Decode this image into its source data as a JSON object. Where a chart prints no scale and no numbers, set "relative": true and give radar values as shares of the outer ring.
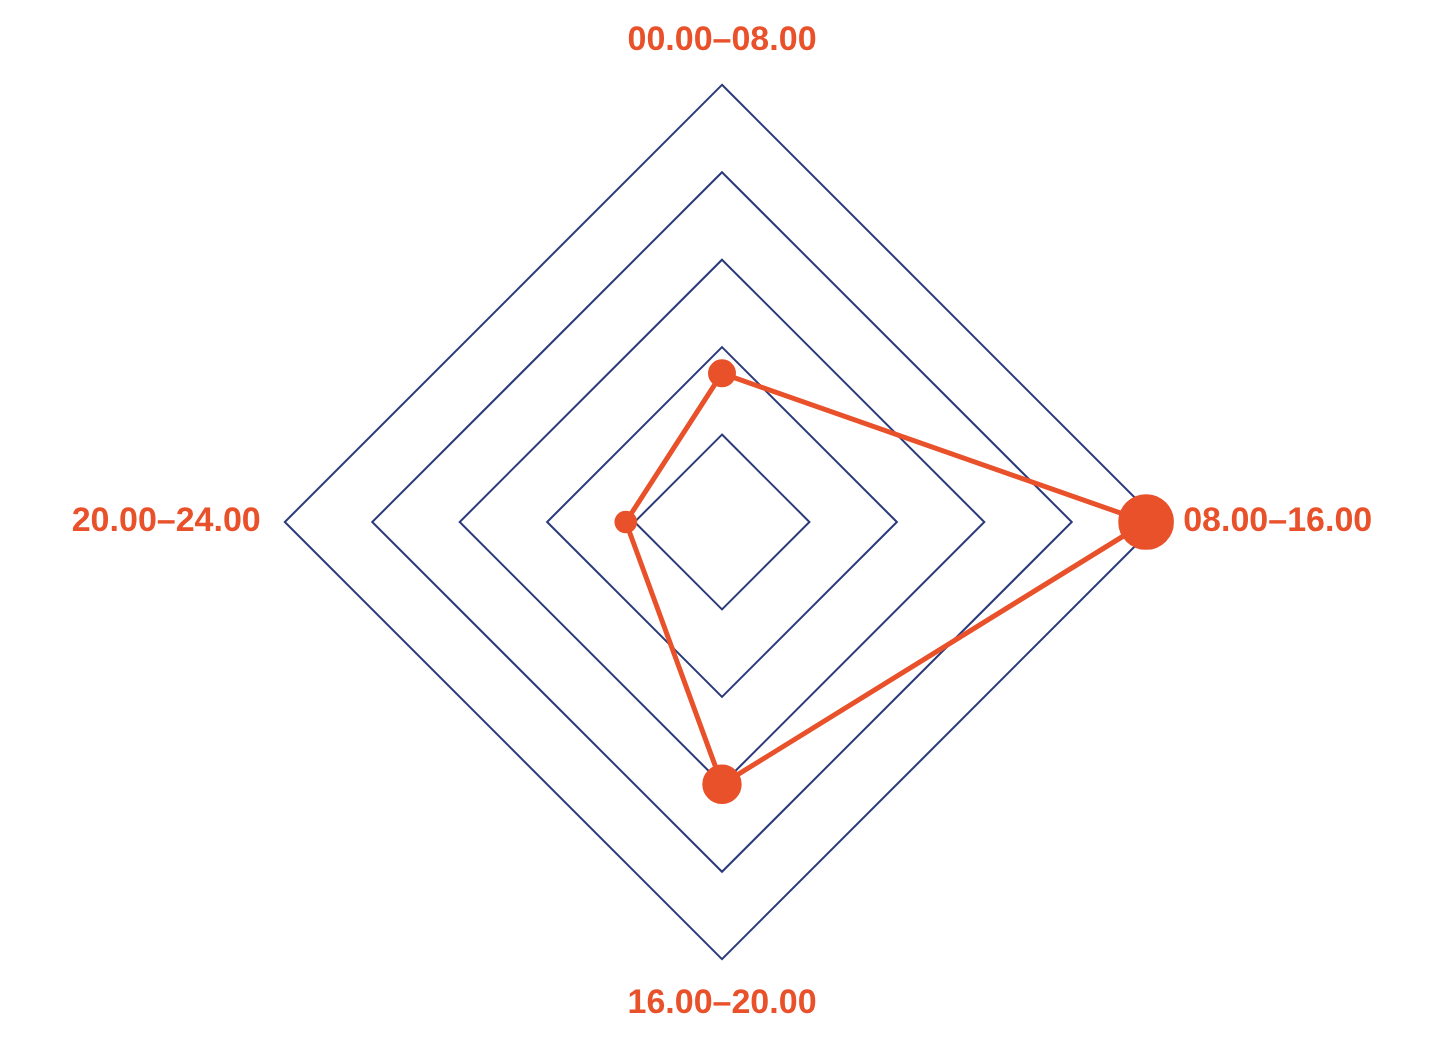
{
  "chart_data": {
    "type": "radar",
    "relative": true,
    "categories": [
      "00.00–08.00",
      "08.00–16.00",
      "16.00–20.00",
      "20.00–24.00"
    ],
    "series": [
      {
        "color": "#e8512a",
        "values": [
          0.34,
          0.97,
          0.6,
          0.22
        ]
      }
    ],
    "marker": "circle",
    "legend": false,
    "grid": true
  }
}
